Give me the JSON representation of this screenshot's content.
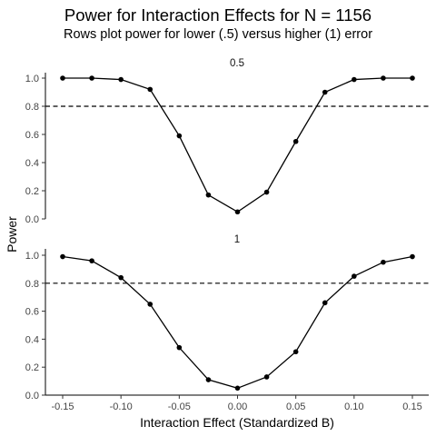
{
  "chart_data": {
    "type": "line",
    "title": "Power for Interaction Effects for N = 1156",
    "subtitle": "Rows plot power for lower (.5) versus higher (1) error",
    "xlabel": "Interaction Effect (Standardized B)",
    "ylabel": "Power",
    "x": [
      -0.15,
      -0.125,
      -0.1,
      -0.075,
      -0.05,
      -0.025,
      0.0,
      0.025,
      0.05,
      0.075,
      0.1,
      0.125,
      0.15
    ],
    "x_ticks": [
      -0.15,
      -0.1,
      -0.05,
      0.0,
      0.05,
      0.1,
      0.15
    ],
    "x_tick_labels": [
      "-0.15",
      "-0.10",
      "-0.05",
      "0.00",
      "0.05",
      "0.10",
      "0.15"
    ],
    "xlim": [
      -0.15,
      0.15
    ],
    "y_ticks": [
      0,
      0.2,
      0.4,
      0.6,
      0.8,
      1.0
    ],
    "y_tick_labels": [
      "0.0",
      "0.2",
      "0.4",
      "0.6",
      "0.8",
      "1.0"
    ],
    "ylim": [
      0,
      1
    ],
    "reference_line": 0.8,
    "grid": false,
    "facets": [
      {
        "label": "0.5",
        "values": [
          1.0,
          1.0,
          0.99,
          0.92,
          0.59,
          0.17,
          0.05,
          0.19,
          0.55,
          0.9,
          0.99,
          1.0,
          1.0
        ]
      },
      {
        "label": "1",
        "values": [
          0.99,
          0.96,
          0.84,
          0.65,
          0.34,
          0.11,
          0.05,
          0.13,
          0.31,
          0.66,
          0.85,
          0.95,
          0.99
        ]
      }
    ]
  }
}
